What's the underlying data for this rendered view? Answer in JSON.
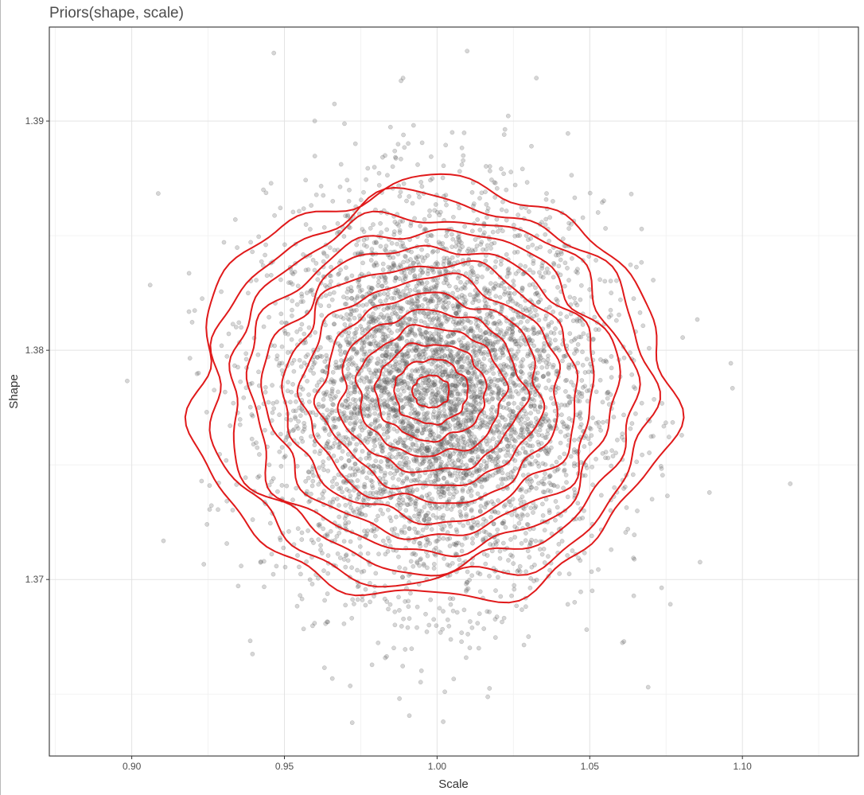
{
  "chart_data": {
    "type": "scatter",
    "title": "Priors(shape, scale)",
    "xlabel": "Scale",
    "ylabel": "Shape",
    "xlim": [
      0.873,
      1.138
    ],
    "ylim": [
      1.3623,
      1.3941
    ],
    "x_ticks": [
      0.9,
      0.95,
      1.0,
      1.05,
      1.1
    ],
    "x_tick_labels": [
      "0.90",
      "0.95",
      "1.00",
      "1.05",
      "1.10"
    ],
    "y_ticks": [
      1.37,
      1.38,
      1.39
    ],
    "y_tick_labels": [
      "1.37",
      "1.38",
      "1.39"
    ],
    "grid": true,
    "legend": "none",
    "point_color": "#5a5a5a",
    "point_alpha": 0.25,
    "contour_color": "#e0191a",
    "points_summary": {
      "count_approx": 5000,
      "x_mean": 1.0,
      "x_sd": 0.027,
      "y_mean": 1.378,
      "y_sd": 0.0042,
      "x_range": [
        0.882,
        1.126
      ],
      "y_range": [
        1.3623,
        1.3932
      ]
    },
    "density_contours": {
      "center": [
        0.998,
        1.3782
      ],
      "levels": 13,
      "outer_x_range": [
        0.922,
        1.078
      ],
      "outer_y_range": [
        1.3689,
        1.3871
      ]
    }
  }
}
